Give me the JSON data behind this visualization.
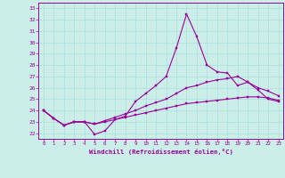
{
  "xlabel": "Windchill (Refroidissement éolien,°C)",
  "bg_color": "#cceee8",
  "line_color": "#990099",
  "grid_color": "#aadddd",
  "x_ticks": [
    0,
    1,
    2,
    3,
    4,
    5,
    6,
    7,
    8,
    9,
    10,
    11,
    12,
    13,
    14,
    15,
    16,
    17,
    18,
    19,
    20,
    21,
    22,
    23
  ],
  "ylim": [
    21.5,
    33.5
  ],
  "yticks": [
    22,
    23,
    24,
    25,
    26,
    27,
    28,
    29,
    30,
    31,
    32,
    33
  ],
  "series1": [
    24.0,
    23.3,
    22.7,
    23.0,
    23.0,
    21.9,
    22.2,
    23.2,
    23.5,
    24.8,
    25.5,
    26.2,
    27.0,
    29.5,
    32.5,
    30.5,
    28.0,
    27.4,
    27.3,
    26.2,
    26.5,
    25.8,
    25.0,
    24.8
  ],
  "series2": [
    24.0,
    23.3,
    22.7,
    23.0,
    23.0,
    22.8,
    23.1,
    23.4,
    23.7,
    24.0,
    24.4,
    24.7,
    25.0,
    25.5,
    26.0,
    26.2,
    26.5,
    26.7,
    26.8,
    27.0,
    26.5,
    26.0,
    25.7,
    25.3
  ],
  "series3": [
    24.0,
    23.3,
    22.7,
    23.0,
    23.0,
    22.8,
    23.0,
    23.2,
    23.4,
    23.6,
    23.8,
    24.0,
    24.2,
    24.4,
    24.6,
    24.7,
    24.8,
    24.9,
    25.0,
    25.1,
    25.2,
    25.2,
    25.1,
    24.9
  ]
}
